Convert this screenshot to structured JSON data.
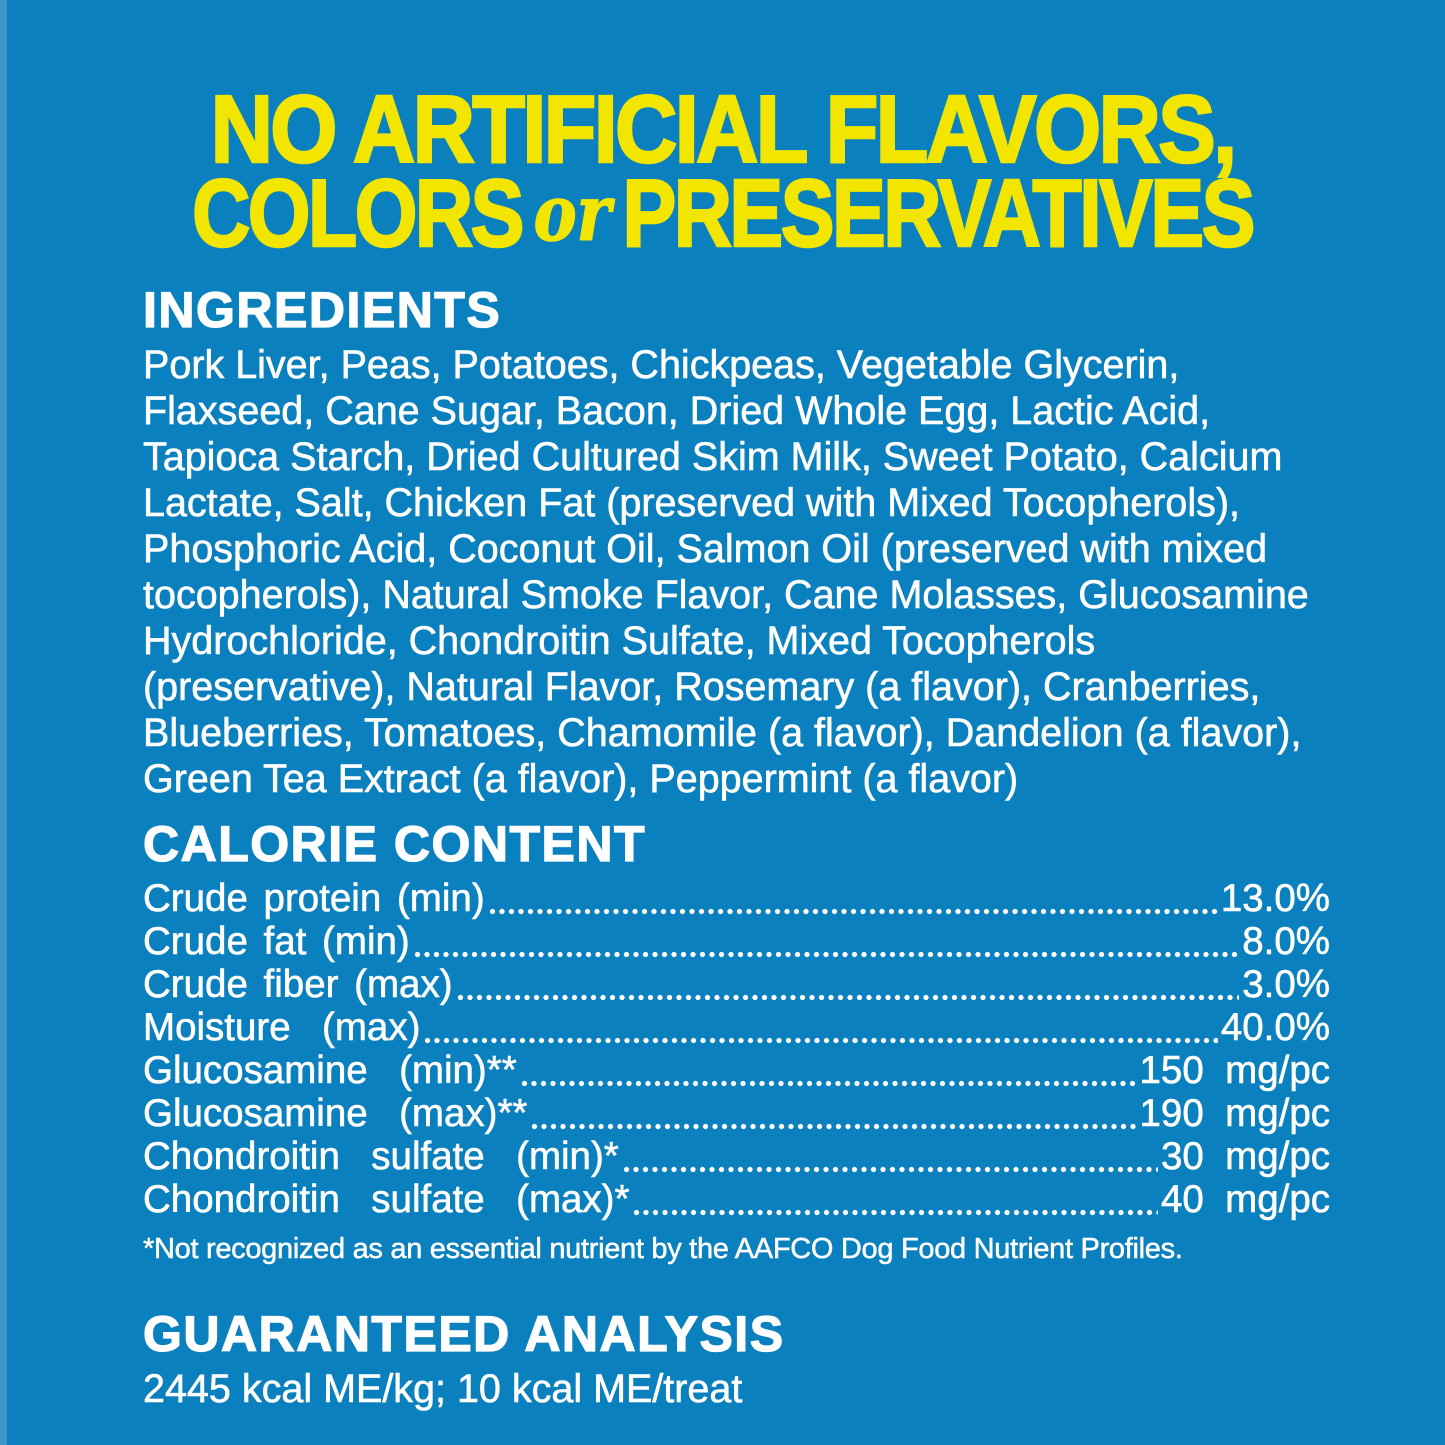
{
  "colors": {
    "background": "#0b80be",
    "edge_highlight": "#3e95c9",
    "headline_yellow": "#f2e600",
    "text": "#ffffff"
  },
  "headline": {
    "line1": "NO ARTIFICIAL FLAVORS,",
    "line2_before": "COLORS",
    "line2_or": "or",
    "line2_after": "PRESERVATIVES"
  },
  "ingredients": {
    "heading": "INGREDIENTS",
    "text": "Pork Liver, Peas, Potatoes, Chickpeas, Vegetable Glycerin, Flaxseed, Cane Sugar, Bacon, Dried Whole Egg, Lactic Acid, Tapioca Starch, Dried Cultured Skim Milk, Sweet Potato, Calcium Lactate, Salt, Chicken Fat (preserved with Mixed Tocopherols), Phosphoric Acid, Coconut Oil, Salmon Oil (preserved with mixed tocopherols), Natural Smoke Flavor, Cane Molasses, Glucosamine Hydrochloride, Chondroitin Sulfate, Mixed Tocopherols (preservative), Natural Flavor, Rosemary (a flavor), Cranberries, Blueberries, Tomatoes, Chamomile (a flavor), Dandelion (a flavor), Green Tea Extract (a flavor), Peppermint (a flavor)"
  },
  "calorie_content": {
    "heading": "CALORIE CONTENT",
    "rows": [
      {
        "label": "Crude protein (min)",
        "value": "13.0%"
      },
      {
        "label": "Crude fat (min)",
        "value": "8.0%"
      },
      {
        "label": "Crude fiber (max)",
        "value": "3.0%"
      },
      {
        "label": "Moisture  (max)",
        "value": "40.0%"
      },
      {
        "label": "Glucosamine  (min)**",
        "value": "150  mg/pc"
      },
      {
        "label": "Glucosamine  (max)**",
        "value": "190  mg/pc"
      },
      {
        "label": "Chondroitin  sulfate  (min)*",
        "value": "30  mg/pc"
      },
      {
        "label": "Chondroitin  sulfate  (max)*",
        "value": "40  mg/pc"
      }
    ],
    "footnote": "*Not recognized as an essential nutrient by the AAFCO Dog Food Nutrient Profiles."
  },
  "guaranteed_analysis": {
    "heading": "GUARANTEED ANALYSIS",
    "statement": "2445 kcal ME/kg; 10 kcal ME/treat"
  }
}
